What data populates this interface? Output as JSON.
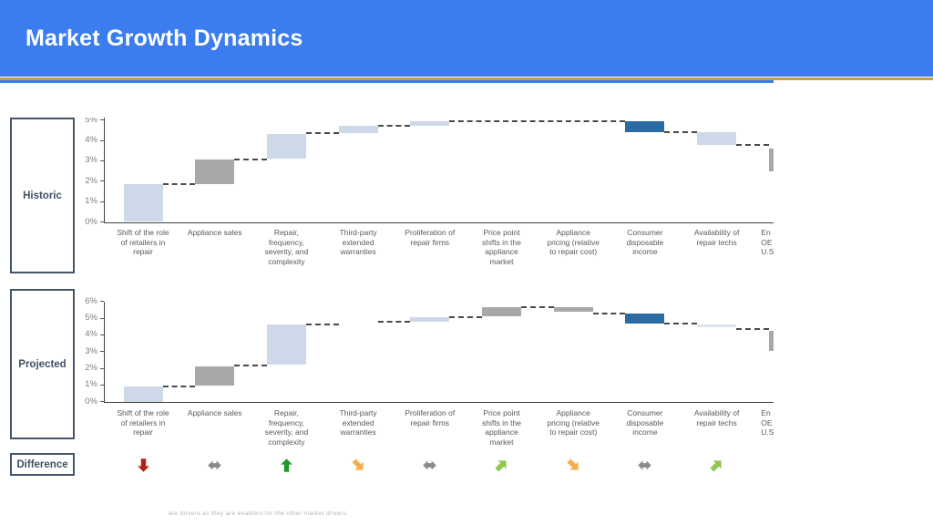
{
  "header": {
    "title": "Market Growth Dynamics"
  },
  "rows": {
    "historic": "Historic",
    "projected": "Projected",
    "difference": "Difference"
  },
  "footnote": "ate drivers as they are enablers for the other market drivers",
  "colors": {
    "header_blue": "#3B7CEF",
    "gold_rule": "#C39C4E",
    "box_border": "#44546A",
    "bar_light_blue": "#CDD9E8",
    "bar_pale_blue": "#DAE4F0",
    "bar_gray": "#A8A8A8",
    "bar_dark_blue": "#2C6CA4",
    "arrow_red": "#AE2217",
    "arrow_gray": "#8A8A8A",
    "arrow_green": "#219A2B",
    "arrow_orange": "#F6AE4C",
    "arrow_light_green": "#8FC74F"
  },
  "categories": [
    {
      "lines": [
        "Shift of the role",
        "of retailers in",
        "repair"
      ]
    },
    {
      "lines": [
        "Appliance sales"
      ]
    },
    {
      "lines": [
        "Repair,",
        "frequency,",
        "severity, and",
        "complexity"
      ]
    },
    {
      "lines": [
        "Third-party",
        "extended",
        "warranties"
      ]
    },
    {
      "lines": [
        "Proliferation of",
        "repair firms"
      ]
    },
    {
      "lines": [
        "Price point",
        "shifts in the",
        "appliance",
        "market"
      ]
    },
    {
      "lines": [
        "Appliance",
        "pricing (relative",
        "to repair cost)"
      ]
    },
    {
      "lines": [
        "Consumer",
        "disposable",
        "income"
      ]
    },
    {
      "lines": [
        "Availability of",
        "repair techs"
      ]
    },
    {
      "lines": [
        "En",
        "OE",
        "U.S"
      ],
      "clipped": true
    }
  ],
  "chart_data": [
    {
      "type": "waterfall",
      "name": "Historic",
      "ylim": [
        0,
        5.2
      ],
      "yticks": [
        {
          "label": "5%",
          "value": 5
        },
        {
          "label": "4%",
          "value": 4
        },
        {
          "label": "3%",
          "value": 3
        },
        {
          "label": "2%",
          "value": 2
        },
        {
          "label": "1%",
          "value": 1
        },
        {
          "label": "0%",
          "value": 0
        }
      ],
      "bars": [
        {
          "category_index": 0,
          "from": 0,
          "to": 1.85,
          "color": "light_blue"
        },
        {
          "category_index": 1,
          "from": 1.85,
          "to": 3.05,
          "color": "gray"
        },
        {
          "category_index": 2,
          "from": 3.1,
          "to": 4.3,
          "color": "light_blue"
        },
        {
          "category_index": 3,
          "from": 4.35,
          "to": 4.7,
          "color": "light_blue"
        },
        {
          "category_index": 4,
          "from": 4.7,
          "to": 4.95,
          "color": "light_blue"
        },
        {
          "category_index": 7,
          "from": 4.4,
          "to": 4.95,
          "color": "dark_blue"
        },
        {
          "category_index": 8,
          "from": 3.8,
          "to": 4.4,
          "color": "light_blue"
        },
        {
          "category_index": 9,
          "from": 2.5,
          "to": 3.6,
          "color": "gray"
        }
      ],
      "connectors": [
        {
          "level": 1.85,
          "from_col": 0,
          "to_col": 1
        },
        {
          "level": 3.05,
          "from_col": 1,
          "to_col": 2
        },
        {
          "level": 4.35,
          "from_col": 2,
          "to_col": 3
        },
        {
          "level": 4.7,
          "from_col": 3,
          "to_col": 4
        },
        {
          "level": 4.95,
          "from_col": 4,
          "to_col": 7
        },
        {
          "level": 4.4,
          "from_col": 7,
          "to_col": 8
        },
        {
          "level": 3.8,
          "from_col": 8,
          "to_col": 9
        }
      ]
    },
    {
      "type": "waterfall",
      "name": "Projected",
      "ylim": [
        0,
        6
      ],
      "yticks": [
        {
          "label": "6%",
          "value": 6
        },
        {
          "label": "5%",
          "value": 5
        },
        {
          "label": "4%",
          "value": 4
        },
        {
          "label": "3%",
          "value": 3
        },
        {
          "label": "2%",
          "value": 2
        },
        {
          "label": "1%",
          "value": 1
        },
        {
          "label": "0%",
          "value": 0
        }
      ],
      "bars": [
        {
          "category_index": 0,
          "from": 0,
          "to": 0.9,
          "color": "light_blue"
        },
        {
          "category_index": 1,
          "from": 0.95,
          "to": 2.1,
          "color": "gray"
        },
        {
          "category_index": 2,
          "from": 2.2,
          "to": 4.65,
          "color": "light_blue"
        },
        {
          "category_index": 4,
          "from": 4.8,
          "to": 5.05,
          "color": "light_blue"
        },
        {
          "category_index": 5,
          "from": 5.1,
          "to": 5.65,
          "color": "gray"
        },
        {
          "category_index": 6,
          "from": 5.4,
          "to": 5.65,
          "color": "gray"
        },
        {
          "category_index": 7,
          "from": 4.7,
          "to": 5.3,
          "color": "dark_blue"
        },
        {
          "category_index": 8,
          "from": 4.45,
          "to": 4.6,
          "color": "pale_blue"
        },
        {
          "category_index": 9,
          "from": 3.05,
          "to": 4.25,
          "color": "gray"
        }
      ],
      "connectors": [
        {
          "level": 0.9,
          "from_col": 0,
          "to_col": 1
        },
        {
          "level": 2.15,
          "from_col": 1,
          "to_col": 2
        },
        {
          "level": 4.65,
          "from_col": 2,
          "to_col": 3
        },
        {
          "level": 4.8,
          "from_col": 3,
          "to_col": 4
        },
        {
          "level": 5.05,
          "from_col": 4,
          "to_col": 5
        },
        {
          "level": 5.65,
          "from_col": 5,
          "to_col": 6
        },
        {
          "level": 5.3,
          "from_col": 6,
          "to_col": 7
        },
        {
          "level": 4.7,
          "from_col": 7,
          "to_col": 8
        },
        {
          "level": 4.35,
          "from_col": 8,
          "to_col": 9
        }
      ]
    }
  ],
  "difference_arrows": [
    {
      "category_index": 0,
      "direction": "down",
      "color": "red"
    },
    {
      "category_index": 1,
      "direction": "left-right",
      "color": "gray"
    },
    {
      "category_index": 2,
      "direction": "up",
      "color": "green"
    },
    {
      "category_index": 3,
      "direction": "down-right",
      "color": "orange"
    },
    {
      "category_index": 4,
      "direction": "left-right",
      "color": "gray"
    },
    {
      "category_index": 5,
      "direction": "up-right",
      "color": "light_green"
    },
    {
      "category_index": 6,
      "direction": "down-right",
      "color": "orange"
    },
    {
      "category_index": 7,
      "direction": "left-right",
      "color": "gray"
    },
    {
      "category_index": 8,
      "direction": "up-right",
      "color": "light_green"
    }
  ]
}
